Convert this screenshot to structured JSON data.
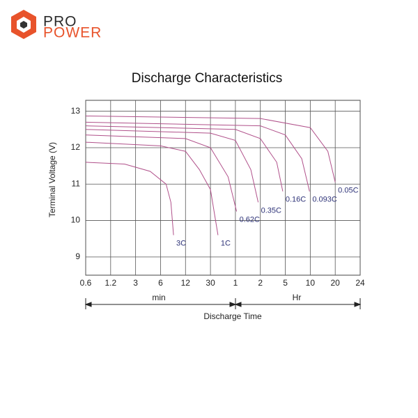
{
  "brand": {
    "line1": "PRO",
    "line2": "POWER"
  },
  "chart_data": {
    "type": "line",
    "title": "Discharge Characteristics",
    "x_label": "Discharge Time",
    "y_label": "Terminal Voltage  (V)",
    "time_units": [
      "min",
      "Hr"
    ],
    "xlim": [
      0.6,
      1440
    ],
    "xticks": [
      0.6,
      1.2,
      3,
      6,
      12,
      30,
      {
        "value": 60,
        "label": "1"
      },
      {
        "value": 120,
        "label": "2"
      },
      {
        "value": 300,
        "label": "5"
      },
      {
        "value": 600,
        "label": "10"
      },
      {
        "value": 1200,
        "label": "20"
      },
      {
        "value": 1440,
        "label": "24"
      }
    ],
    "ylim": [
      8.5,
      13.3
    ],
    "yticks": [
      9,
      10,
      11,
      12,
      13
    ],
    "grid": true,
    "label_color": "#2e3378",
    "series": [
      {
        "name": "3C",
        "color": "#b0508a",
        "x": [
          0.6,
          2,
          4.5,
          7,
          8,
          8.6
        ],
        "values": [
          11.6,
          11.55,
          11.35,
          11.0,
          10.5,
          9.6
        ]
      },
      {
        "name": "1C",
        "color": "#b0508a",
        "x": [
          0.6,
          6,
          12,
          20,
          30,
          37
        ],
        "values": [
          12.15,
          12.05,
          11.9,
          11.4,
          10.85,
          9.6
        ]
      },
      {
        "name": "0.62C",
        "color": "#b0508a",
        "x": [
          0.6,
          12,
          30,
          49,
          62
        ],
        "values": [
          12.35,
          12.25,
          12.0,
          11.2,
          10.25
        ]
      },
      {
        "name": "0.35C",
        "color": "#b0508a",
        "x": [
          0.6,
          30,
          60,
          92,
          113
        ],
        "values": [
          12.5,
          12.4,
          12.2,
          11.4,
          10.5
        ]
      },
      {
        "name": "0.16C",
        "color": "#b0508a",
        "x": [
          0.6,
          60,
          120,
          219,
          273
        ],
        "values": [
          12.6,
          12.5,
          12.25,
          11.6,
          10.8
        ]
      },
      {
        "name": "0.093C",
        "color": "#b0508a",
        "x": [
          0.6,
          120,
          300,
          473,
          588
        ],
        "values": [
          12.7,
          12.6,
          12.35,
          11.7,
          10.8
        ]
      },
      {
        "name": "0.05C",
        "color": "#b0508a",
        "x": [
          0.6,
          120,
          600,
          978,
          1200
        ],
        "values": [
          12.87,
          12.8,
          12.55,
          11.9,
          11.05
        ]
      }
    ]
  }
}
